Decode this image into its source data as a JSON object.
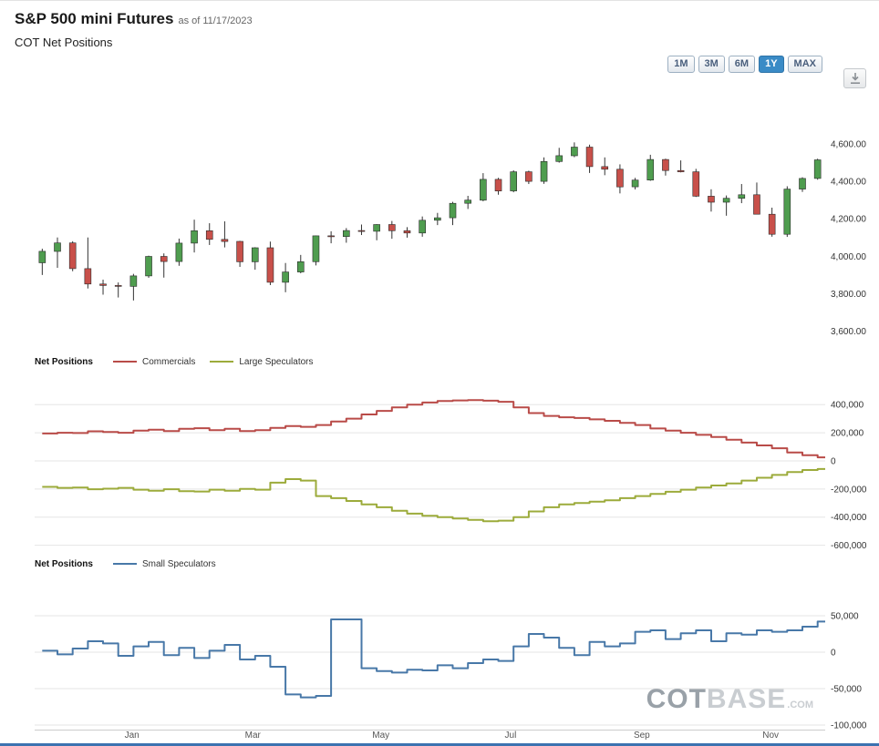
{
  "header": {
    "title": "S&P 500 mini Futures",
    "as_of": "as of 11/17/2023",
    "subtitle": "COT Net Positions"
  },
  "toolbar": {
    "range_buttons": [
      {
        "label": "1M",
        "active": false
      },
      {
        "label": "3M",
        "active": false
      },
      {
        "label": "6M",
        "active": false
      },
      {
        "label": "1Y",
        "active": true
      },
      {
        "label": "MAX",
        "active": false
      }
    ],
    "active_color": "#3a8bc6"
  },
  "x_axis": {
    "labels": [
      {
        "label": "Jan",
        "pos": 0.123
      },
      {
        "label": "Mar",
        "pos": 0.276
      },
      {
        "label": "May",
        "pos": 0.438
      },
      {
        "label": "Jul",
        "pos": 0.602
      },
      {
        "label": "Sep",
        "pos": 0.768
      },
      {
        "label": "Nov",
        "pos": 0.931
      }
    ]
  },
  "watermark": {
    "part1": "COT",
    "part2": "BASE",
    "part3": ".COM"
  },
  "chart_data": [
    {
      "type": "candlestick",
      "title": "S&P 500 mini Futures daily price (approx. weekly OHLC, Nov 2022 - Nov 17 2023)",
      "up_color": "#4f9d4f",
      "down_color": "#c8504a",
      "wick_color": "#333333",
      "ylim": [
        3540,
        4900
      ],
      "y_ticks": [
        {
          "label": "4,600.00",
          "value": 4600
        },
        {
          "label": "4,400.00",
          "value": 4400
        },
        {
          "label": "4,200.00",
          "value": 4200
        },
        {
          "label": "4,000.00",
          "value": 4000
        },
        {
          "label": "3,800.00",
          "value": 3800
        },
        {
          "label": "3,600.00",
          "value": 3600
        }
      ],
      "ohlc": [
        [
          3965,
          4040,
          3900,
          4026
        ],
        [
          4026,
          4100,
          3938,
          4071
        ],
        [
          4071,
          4080,
          3920,
          3934
        ],
        [
          3934,
          4100,
          3828,
          3852
        ],
        [
          3852,
          3875,
          3795,
          3844
        ],
        [
          3844,
          3860,
          3780,
          3839
        ],
        [
          3839,
          3906,
          3764,
          3895
        ],
        [
          3895,
          4003,
          3885,
          3999
        ],
        [
          3999,
          4015,
          3886,
          3972
        ],
        [
          3972,
          4094,
          3949,
          4070
        ],
        [
          4070,
          4195,
          4020,
          4136
        ],
        [
          4136,
          4176,
          4060,
          4090
        ],
        [
          4090,
          4186,
          4047,
          4079
        ],
        [
          4079,
          4082,
          3943,
          3970
        ],
        [
          3970,
          4048,
          3928,
          4045
        ],
        [
          4045,
          4078,
          3846,
          3861
        ],
        [
          3861,
          3964,
          3808,
          3916
        ],
        [
          3916,
          4007,
          3909,
          3971
        ],
        [
          3971,
          4110,
          3951,
          4109
        ],
        [
          4109,
          4133,
          4069,
          4105
        ],
        [
          4105,
          4150,
          4072,
          4137
        ],
        [
          4137,
          4169,
          4113,
          4133
        ],
        [
          4133,
          4171,
          4085,
          4169
        ],
        [
          4169,
          4188,
          4093,
          4136
        ],
        [
          4136,
          4155,
          4099,
          4124
        ],
        [
          4124,
          4212,
          4104,
          4192
        ],
        [
          4192,
          4231,
          4166,
          4205
        ],
        [
          4205,
          4290,
          4166,
          4282
        ],
        [
          4282,
          4322,
          4252,
          4299
        ],
        [
          4299,
          4443,
          4293,
          4410
        ],
        [
          4410,
          4418,
          4328,
          4348
        ],
        [
          4348,
          4458,
          4341,
          4450
        ],
        [
          4450,
          4456,
          4385,
          4399
        ],
        [
          4399,
          4527,
          4386,
          4505
        ],
        [
          4505,
          4578,
          4499,
          4536
        ],
        [
          4536,
          4607,
          4528,
          4582
        ],
        [
          4582,
          4595,
          4444,
          4478
        ],
        [
          4478,
          4527,
          4432,
          4464
        ],
        [
          4464,
          4490,
          4335,
          4370
        ],
        [
          4370,
          4418,
          4356,
          4406
        ],
        [
          4406,
          4541,
          4402,
          4516
        ],
        [
          4516,
          4520,
          4430,
          4457
        ],
        [
          4457,
          4511,
          4447,
          4450
        ],
        [
          4450,
          4466,
          4316,
          4320
        ],
        [
          4320,
          4357,
          4238,
          4288
        ],
        [
          4288,
          4324,
          4216,
          4309
        ],
        [
          4309,
          4385,
          4283,
          4328
        ],
        [
          4328,
          4393,
          4223,
          4224
        ],
        [
          4224,
          4259,
          4104,
          4117
        ],
        [
          4117,
          4373,
          4103,
          4358
        ],
        [
          4358,
          4421,
          4343,
          4415
        ],
        [
          4415,
          4520,
          4408,
          4514
        ]
      ]
    },
    {
      "type": "step_line",
      "label": "Net Positions",
      "ylim": [
        -635000,
        628000
      ],
      "y_ticks": [
        {
          "label": "400,000",
          "value": 400000
        },
        {
          "label": "200,000",
          "value": 200000
        },
        {
          "label": "0",
          "value": 0
        },
        {
          "label": "-200,000",
          "value": -200000
        },
        {
          "label": "-400,000",
          "value": -400000
        },
        {
          "label": "-600,000",
          "value": -600000
        }
      ],
      "series": [
        {
          "name": "Commercials",
          "color": "#b94b48",
          "values": [
            195000,
            200000,
            198000,
            210000,
            205000,
            200000,
            215000,
            222000,
            212000,
            228000,
            232000,
            218000,
            228000,
            212000,
            218000,
            235000,
            248000,
            242000,
            255000,
            280000,
            300000,
            330000,
            355000,
            380000,
            400000,
            415000,
            425000,
            430000,
            432000,
            428000,
            420000,
            380000,
            340000,
            320000,
            310000,
            305000,
            295000,
            285000,
            270000,
            255000,
            230000,
            215000,
            200000,
            185000,
            170000,
            150000,
            130000,
            110000,
            90000,
            60000,
            40000,
            25000
          ]
        },
        {
          "name": "Large Speculators",
          "color": "#9cab3b",
          "values": [
            -185000,
            -192000,
            -190000,
            -202000,
            -198000,
            -192000,
            -205000,
            -212000,
            -202000,
            -215000,
            -218000,
            -205000,
            -212000,
            -200000,
            -205000,
            -155000,
            -130000,
            -140000,
            -250000,
            -265000,
            -285000,
            -310000,
            -330000,
            -355000,
            -375000,
            -390000,
            -400000,
            -410000,
            -420000,
            -430000,
            -425000,
            -400000,
            -360000,
            -330000,
            -310000,
            -300000,
            -290000,
            -280000,
            -265000,
            -250000,
            -235000,
            -220000,
            -205000,
            -190000,
            -175000,
            -160000,
            -140000,
            -120000,
            -100000,
            -80000,
            -65000,
            -58000
          ]
        }
      ]
    },
    {
      "type": "step_line",
      "label": "Net Positions",
      "ylim": [
        -106250,
        106250
      ],
      "y_ticks": [
        {
          "label": "50,000",
          "value": 50000
        },
        {
          "label": "0",
          "value": 0
        },
        {
          "label": "-50,000",
          "value": -50000
        },
        {
          "label": "-100,000",
          "value": -100000
        }
      ],
      "series": [
        {
          "name": "Small Speculators",
          "color": "#4878a8",
          "values": [
            2000,
            -3000,
            5000,
            15000,
            12000,
            -5000,
            8000,
            14000,
            -4000,
            6000,
            -8000,
            2000,
            10000,
            -10000,
            -5000,
            -20000,
            -58000,
            -62000,
            -60000,
            45000,
            45000,
            -22000,
            -26000,
            -28000,
            -24000,
            -25000,
            -18000,
            -22000,
            -15000,
            -10000,
            -12000,
            8000,
            25000,
            20000,
            6000,
            -4000,
            14000,
            8000,
            12000,
            28000,
            30000,
            18000,
            26000,
            30000,
            15000,
            26000,
            24000,
            30000,
            28000,
            30000,
            35000,
            42000
          ]
        }
      ]
    }
  ]
}
